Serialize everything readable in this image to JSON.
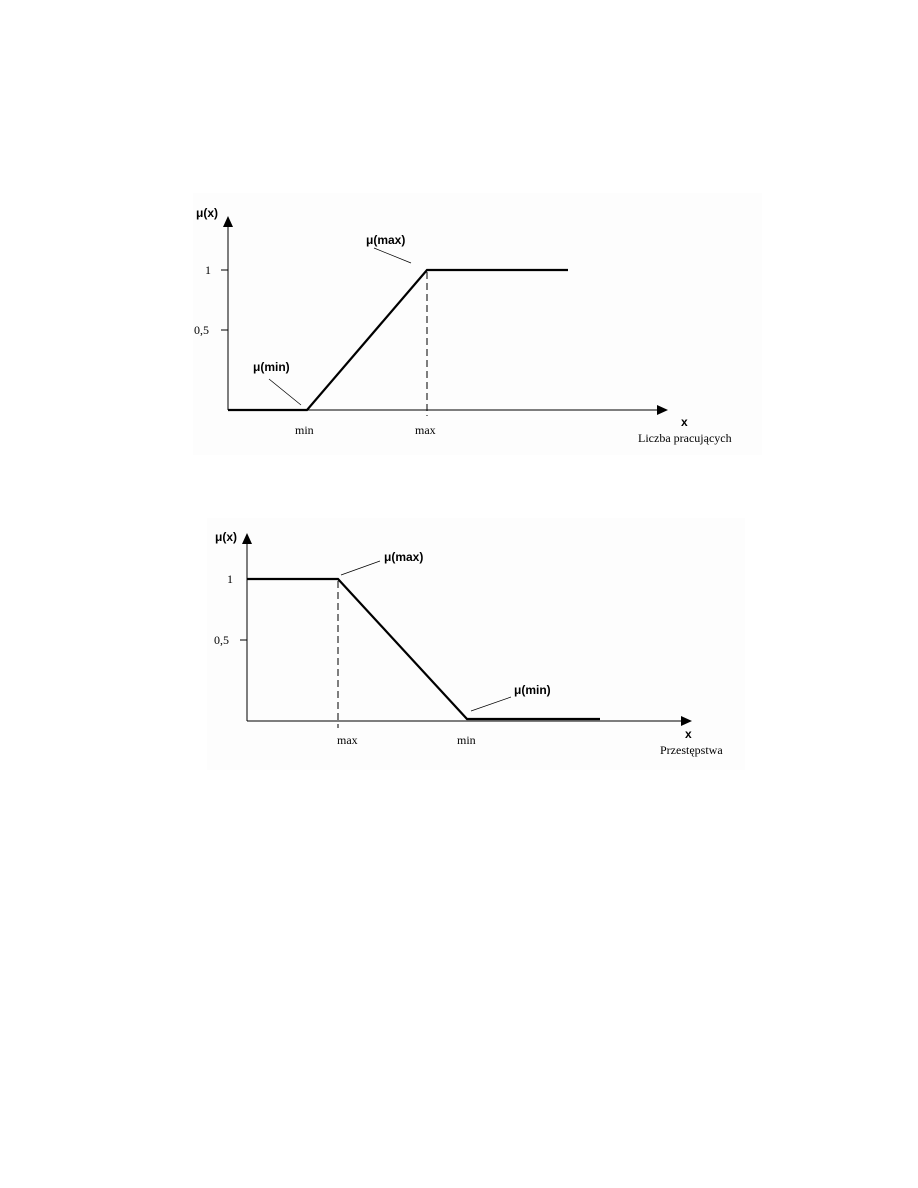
{
  "chart_data": [
    {
      "type": "line",
      "ylabel": "μ(x)",
      "xlabel_symbol": "x",
      "xlabel": "Liczba pracujących",
      "yticks": [
        "1",
        "0,5"
      ],
      "xticks": [
        "min",
        "max"
      ],
      "annotations": [
        "μ(min)",
        "μ(max)"
      ],
      "ylim": [
        0,
        1
      ],
      "series": [
        {
          "points": [
            [
              "start",
              0
            ],
            [
              "min",
              0
            ],
            [
              "max",
              1
            ],
            [
              "end",
              1
            ]
          ]
        }
      ],
      "shape": "increasing"
    },
    {
      "type": "line",
      "ylabel": "μ(x)",
      "xlabel_symbol": "x",
      "xlabel": "Przestępstwa",
      "yticks": [
        "1",
        "0,5"
      ],
      "xticks": [
        "max",
        "min"
      ],
      "annotations": [
        "μ(max)",
        "μ(min)"
      ],
      "ylim": [
        0,
        1
      ],
      "series": [
        {
          "points": [
            [
              "start",
              1
            ],
            [
              "max",
              1
            ],
            [
              "min",
              0
            ],
            [
              "end",
              0
            ]
          ]
        }
      ],
      "shape": "decreasing"
    }
  ]
}
